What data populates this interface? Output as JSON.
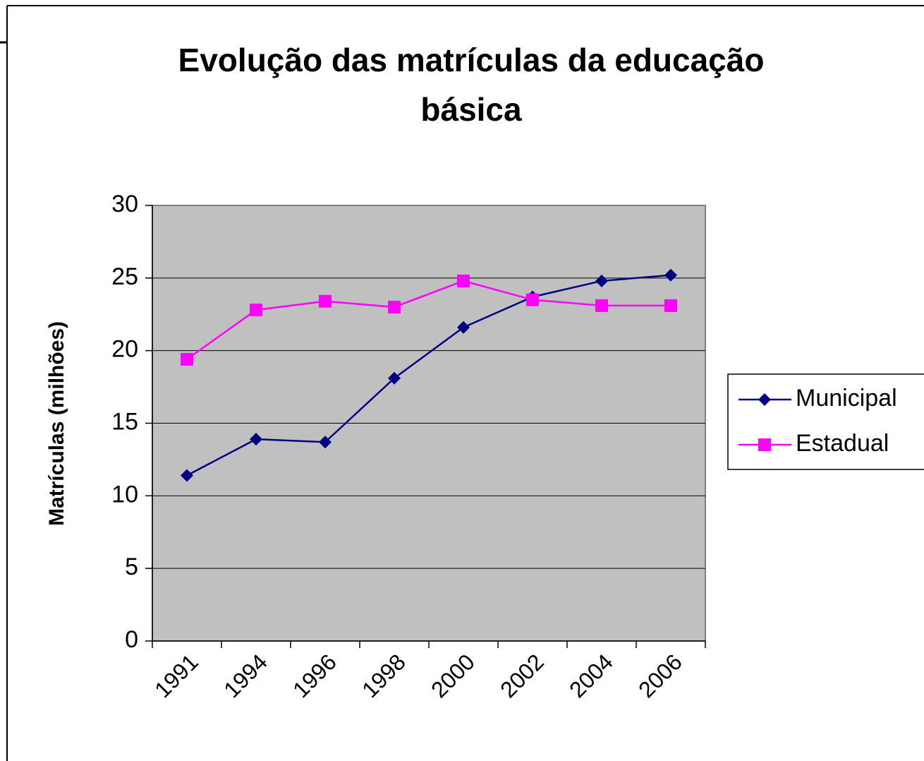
{
  "chart_data": {
    "type": "line",
    "title": "Evolução das matrículas da educação básica",
    "y_label": "Matrículas (milhões)",
    "categories": [
      "1991",
      "1994",
      "1996",
      "1998",
      "2000",
      "2002",
      "2004",
      "2006"
    ],
    "series": [
      {
        "name": "Municipal",
        "color": "#000080",
        "marker": "diamond",
        "values": [
          11.4,
          13.9,
          13.7,
          18.1,
          21.6,
          23.7,
          24.8,
          25.2
        ]
      },
      {
        "name": "Estadual",
        "color": "#ff00ff",
        "marker": "square",
        "values": [
          19.4,
          22.8,
          23.4,
          23.0,
          24.8,
          23.5,
          23.1,
          23.1
        ]
      }
    ],
    "ylim": [
      0,
      30
    ],
    "yticks": [
      0,
      5,
      10,
      15,
      20,
      25,
      30
    ],
    "grid": true,
    "legend": "right"
  }
}
